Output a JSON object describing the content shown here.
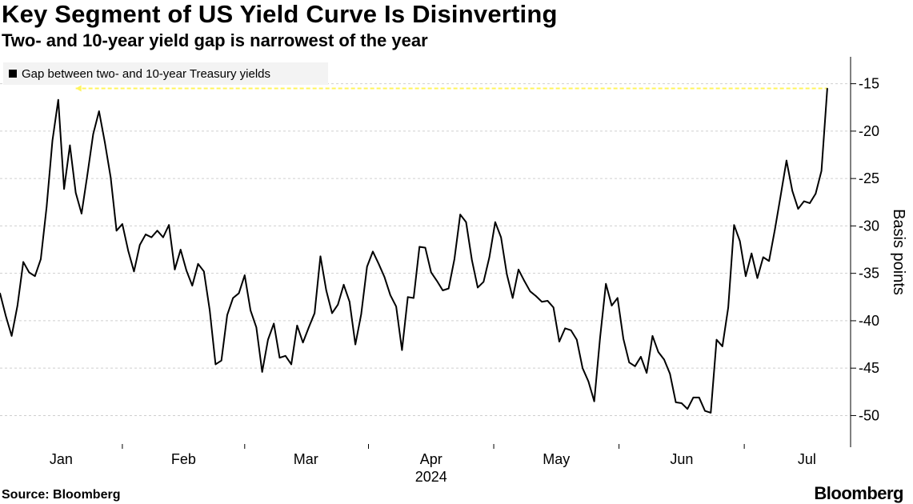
{
  "header": {
    "title": "Key Segment of US Yield Curve Is Disinverting",
    "subtitle": "Two- and 10-year yield gap is narrowest of the year"
  },
  "footer": {
    "source": "Source: Bloomberg",
    "brand": "Bloomberg"
  },
  "colors": {
    "line": "#000000",
    "highlight": "#fff45c",
    "grid": "#cfcfcf",
    "legend_bg": "#f3f3f3"
  },
  "chart_data": {
    "type": "line",
    "title": "Key Segment of US Yield Curve Is Disinverting",
    "subtitle": "Two- and 10-year yield gap is narrowest of the year",
    "xlabel": "",
    "ylabel": "Basis points",
    "ylim": [
      -53,
      -12.5
    ],
    "yticks": [
      -15,
      -20,
      -25,
      -30,
      -35,
      -40,
      -45,
      -50
    ],
    "ytick_labels": [
      "-15",
      "-20",
      "-25",
      "-30",
      "-35",
      "-40",
      "-45",
      "-50"
    ],
    "x_unit": "trading day index",
    "xlim": [
      0,
      146
    ],
    "month_ticks": [
      {
        "label": "Jan",
        "x": 10.5
      },
      {
        "label": "Feb",
        "x": 31.5
      },
      {
        "label": "Mar",
        "x": 52.5
      },
      {
        "label": "Apr",
        "x": 74
      },
      {
        "label": "May",
        "x": 95.5
      },
      {
        "label": "Jun",
        "x": 117
      },
      {
        "label": "Jul",
        "x": 138.5
      }
    ],
    "year_label": "2024",
    "year_label_x": 74,
    "legend_position": "top-left",
    "grid": true,
    "series": [
      {
        "name": "Gap between two- and 10-year Treasury yields",
        "values": [
          -37.1,
          -39.5,
          -41.6,
          -38.4,
          -33.8,
          -34.9,
          -35.3,
          -33.5,
          -28.0,
          -21.0,
          -16.7,
          -26.1,
          -21.5,
          -26.5,
          -28.7,
          -24.6,
          -20.3,
          -17.9,
          -21.2,
          -24.9,
          -30.5,
          -29.8,
          -32.6,
          -34.8,
          -32.0,
          -30.9,
          -31.2,
          -30.5,
          -31.2,
          -29.9,
          -34.6,
          -32.5,
          -34.7,
          -36.3,
          -34.0,
          -34.8,
          -38.9,
          -44.6,
          -44.2,
          -39.4,
          -37.6,
          -37.1,
          -35.2,
          -38.9,
          -40.7,
          -45.4,
          -42.0,
          -40.3,
          -43.9,
          -43.7,
          -44.6,
          -40.5,
          -42.3,
          -40.7,
          -39.2,
          -33.2,
          -36.8,
          -39.2,
          -38.3,
          -36.2,
          -38.0,
          -42.5,
          -39.3,
          -34.3,
          -32.7,
          -34.0,
          -35.4,
          -37.3,
          -38.5,
          -43.1,
          -37.5,
          -37.6,
          -32.2,
          -32.3,
          -34.9,
          -35.8,
          -36.8,
          -36.6,
          -33.5,
          -28.8,
          -29.6,
          -33.6,
          -36.5,
          -35.9,
          -33.3,
          -29.6,
          -31.2,
          -35.1,
          -37.6,
          -34.6,
          -35.8,
          -36.9,
          -37.4,
          -38.0,
          -37.9,
          -38.6,
          -42.2,
          -40.8,
          -41.0,
          -42.0,
          -45.0,
          -46.4,
          -48.5,
          -41.8,
          -36.1,
          -38.4,
          -37.6,
          -41.9,
          -44.4,
          -44.8,
          -43.8,
          -45.5,
          -41.6,
          -43.3,
          -44.1,
          -45.6,
          -48.6,
          -48.7,
          -49.3,
          -48.1,
          -48.1,
          -49.5,
          -49.7,
          -42.0,
          -42.7,
          -38.6,
          -29.9,
          -31.6,
          -35.3,
          -32.9,
          -35.5,
          -33.3,
          -33.7,
          -30.4,
          -26.8,
          -23.1,
          -26.3,
          -28.2,
          -27.4,
          -27.6,
          -26.6,
          -24.2,
          -15.5
        ]
      }
    ],
    "annotations": [
      {
        "type": "horizontal-line",
        "y": -15.5,
        "style": "dashed",
        "color": "#fff45c",
        "description": "latest level extended back to start of year"
      }
    ]
  }
}
